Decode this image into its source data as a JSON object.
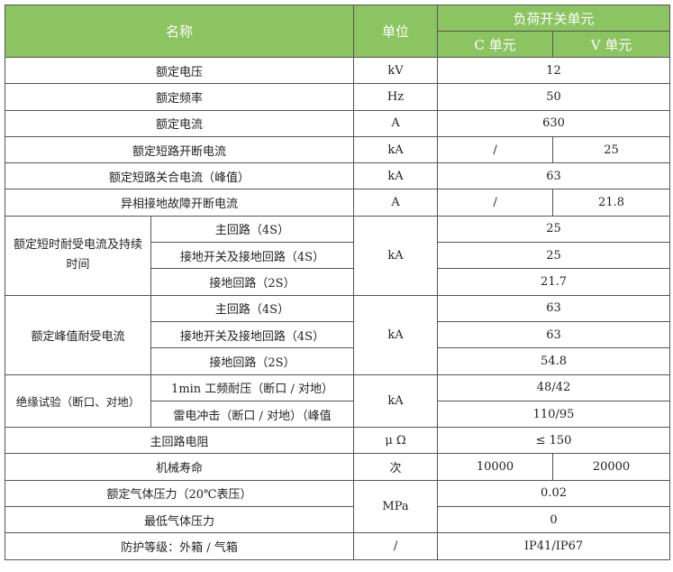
{
  "header": {
    "name": "名称",
    "unit": "单位",
    "group": "负荷开关单元",
    "c_unit": "C 单元",
    "v_unit": "V 单元"
  },
  "rows": {
    "voltage": {
      "name": "额定电压",
      "unit": "kV",
      "value": "12"
    },
    "frequency": {
      "name": "额定频率",
      "unit": "Hz",
      "value": "50"
    },
    "current": {
      "name": "额定电流",
      "unit": "A",
      "value": "630"
    },
    "short_break": {
      "name": "额定短路开断电流",
      "unit": "kA",
      "c": "/",
      "v": "25"
    },
    "short_make": {
      "name": "额定短路关合电流（峰值）",
      "unit": "kA",
      "value": "63"
    },
    "phase_fault": {
      "name": "异相接地故障开断电流",
      "unit": "A",
      "c": "/",
      "v": "21.8"
    },
    "short_time": {
      "name": "额定短时耐受电流及持续时间",
      "unit": "kA",
      "subs": [
        {
          "name": "主回路（4S）",
          "value": "25"
        },
        {
          "name": "接地开关及接地回路（4S）",
          "value": "25"
        },
        {
          "name": "接地回路（2S）",
          "value": "21.7"
        }
      ]
    },
    "peak": {
      "name": "额定峰值耐受电流",
      "unit": "kA",
      "subs": [
        {
          "name": "主回路（4S）",
          "value": "63"
        },
        {
          "name": "接地开关及接地回路（4S）",
          "value": "63"
        },
        {
          "name": "接地回路（2S）",
          "value": "54.8"
        }
      ]
    },
    "insulation": {
      "name": "绝缘试验（断口、对地）",
      "unit": "kA",
      "subs": [
        {
          "name": "1min 工频耐压（断口 / 对地）",
          "value": "48/42"
        },
        {
          "name": "雷电冲击（断口 / 对地）（峰值",
          "value": "110/95"
        }
      ]
    },
    "resistance": {
      "name": "主回路电阻",
      "unit": "μ Ω",
      "value": "≤ 150"
    },
    "mech_life": {
      "name": "机械寿命",
      "unit": "次",
      "c": "10000",
      "v": "20000"
    },
    "gas_pressure": {
      "name": "额定气体压力（20℃表压）",
      "unit": "MPa",
      "value": "0.02"
    },
    "min_gas": {
      "name": "最低气体压力",
      "value": "0"
    },
    "protection": {
      "name": "防护等级：外箱 / 气箱",
      "unit": "/",
      "value": "IP41/IP67"
    }
  },
  "colors": {
    "header_bg": "#8cc462",
    "border": "#555555"
  }
}
